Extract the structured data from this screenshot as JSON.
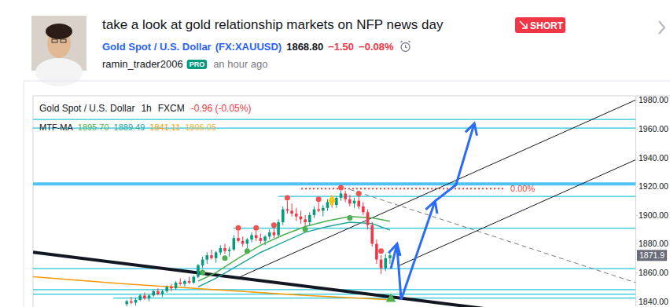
{
  "header": {
    "title": "take a look at gold relationship markets on NFP news day",
    "badge": "SHORT",
    "symbol": "Gold Spot / U.S. Dollar",
    "ticker": "(FX:XAUUSD)",
    "price": "1868.80",
    "change": "−1.50",
    "change_percent": "−0.08%",
    "author": "ramin_trader2006",
    "author_badge": "PRO",
    "time": "an hour ago"
  },
  "chart_data": {
    "type": "candlestick",
    "title": "Gold Spot / U.S. Dollar",
    "interval": "1h",
    "exchange": "FXCM",
    "change": "-0.96 (-0.05%)",
    "indicator": {
      "name": "MTF-MA",
      "labels": [
        "1895.70",
        "1889.49",
        "1841.11",
        "1806.05"
      ],
      "colors": [
        "#4caf50",
        "#26a69a",
        "#ff9800",
        "#f5b335"
      ]
    },
    "x": [
      0,
      1,
      2,
      3,
      4,
      5,
      6,
      7,
      8,
      9,
      10,
      11,
      12,
      13,
      14,
      15,
      16,
      17,
      18,
      19,
      20,
      21,
      22,
      23,
      24,
      25,
      26,
      27,
      28,
      29,
      30,
      31,
      32,
      33,
      34,
      35,
      36,
      37,
      38,
      39,
      40,
      41,
      42,
      43,
      44,
      45,
      46,
      47,
      48,
      49,
      50,
      51,
      52,
      53,
      54,
      55,
      56,
      57,
      58,
      59
    ],
    "open": [
      1838,
      1840,
      1839,
      1841,
      1844,
      1842,
      1844,
      1847,
      1845,
      1847,
      1850,
      1849,
      1853,
      1852,
      1854,
      1853,
      1857,
      1865,
      1869,
      1872,
      1870,
      1874,
      1877,
      1875,
      1876,
      1884,
      1882,
      1880,
      1883,
      1886,
      1884,
      1882,
      1885,
      1888,
      1886,
      1895,
      1904,
      1903,
      1901,
      1899,
      1897,
      1895,
      1900,
      1904,
      1903,
      1905,
      1909,
      1907,
      1912,
      1915,
      1911,
      1908,
      1910,
      1906,
      1902,
      1893,
      1880,
      1869,
      1863,
      1870
    ],
    "high": [
      1841,
      1843,
      1842,
      1845,
      1846,
      1845,
      1848,
      1849,
      1848,
      1851,
      1852,
      1854,
      1856,
      1855,
      1857,
      1858,
      1866,
      1871,
      1874,
      1876,
      1875,
      1879,
      1880,
      1878,
      1886,
      1889,
      1885,
      1884,
      1888,
      1889,
      1887,
      1886,
      1890,
      1891,
      1897,
      1906,
      1910,
      1908,
      1905,
      1903,
      1900,
      1902,
      1906,
      1909,
      1907,
      1911,
      1912,
      1913,
      1917,
      1917,
      1914,
      1912,
      1913,
      1909,
      1904,
      1895,
      1883,
      1872,
      1873,
      1874
    ],
    "low": [
      1836.5,
      1838,
      1837,
      1840,
      1841,
      1840,
      1843,
      1844,
      1843,
      1846,
      1847,
      1848,
      1851,
      1850,
      1852,
      1852,
      1856,
      1863,
      1866,
      1869,
      1867,
      1872,
      1873,
      1871,
      1875,
      1881,
      1878,
      1877,
      1881,
      1882,
      1880,
      1879,
      1883,
      1884,
      1885,
      1893,
      1901,
      1899,
      1896,
      1894,
      1892,
      1893,
      1898,
      1902,
      1899,
      1903,
      1905,
      1905,
      1910,
      1909,
      1906,
      1905,
      1904,
      1900,
      1890,
      1878,
      1866,
      1859,
      1861,
      1866
    ],
    "close": [
      1840,
      1839,
      1841,
      1844,
      1842,
      1844,
      1847,
      1845,
      1847,
      1850,
      1849,
      1853,
      1852,
      1854,
      1853,
      1857,
      1865,
      1869,
      1872,
      1870,
      1874,
      1877,
      1875,
      1876,
      1884,
      1882,
      1880,
      1883,
      1886,
      1884,
      1882,
      1885,
      1888,
      1886,
      1895,
      1904,
      1903,
      1901,
      1899,
      1897,
      1895,
      1900,
      1904,
      1903,
      1905,
      1909,
      1907,
      1912,
      1915,
      1911,
      1908,
      1910,
      1906,
      1902,
      1893,
      1880,
      1869,
      1863,
      1870,
      1872
    ],
    "xlim": [
      -21,
      114
    ],
    "ylim": [
      1836,
      1983
    ],
    "yticks": [
      {
        "value": 1840,
        "label": "1840.00"
      },
      {
        "value": 1860,
        "label": "1860.00"
      },
      {
        "value": 1880,
        "label": "1880.00"
      },
      {
        "value": 1900,
        "label": "1900.00"
      },
      {
        "value": 1920,
        "label": "1920.00"
      },
      {
        "value": 1940,
        "label": "1940.00"
      },
      {
        "value": 1960,
        "label": "1960.00"
      },
      {
        "value": 1980,
        "label": "1980.00"
      }
    ],
    "tick_labels": "y",
    "grid": false,
    "last_price": 1871.9,
    "series": [
      {
        "type": "line",
        "color": "#4caf50",
        "x": [
          16,
          20,
          25,
          30,
          35,
          40,
          45,
          50,
          55,
          59
        ],
        "values": [
          1854,
          1860,
          1870,
          1879,
          1886,
          1892,
          1896,
          1899,
          1898,
          1895.7
        ]
      },
      {
        "type": "line",
        "color": "#26a69a",
        "x": [
          16,
          20,
          25,
          30,
          35,
          40,
          45,
          50,
          55,
          59
        ],
        "values": [
          1850,
          1856,
          1865,
          1874,
          1881,
          1888,
          1892,
          1895,
          1894,
          1889.49
        ]
      },
      {
        "type": "line",
        "color": "#ff9800",
        "x": [
          -21,
          0,
          20,
          40,
          59
        ],
        "values": [
          1857,
          1852,
          1848,
          1844,
          1841.11
        ]
      },
      {
        "type": "scatter",
        "marker": "circle",
        "color": "#ef5350",
        "x": [
          25,
          29,
          33,
          36,
          43,
          48,
          52,
          57
        ],
        "values": [
          1891,
          1891,
          1893,
          1912,
          1911,
          1919,
          1915,
          1875
        ]
      },
      {
        "type": "scatter",
        "marker": "circle",
        "color": "#4caf50",
        "x": [
          17,
          22,
          27,
          40,
          50
        ],
        "values": [
          1860,
          1870,
          1875,
          1890,
          1898
        ]
      },
      {
        "type": "scatter",
        "marker": "diamond",
        "color": "#f5c518",
        "x": [
          46
        ],
        "values": [
          1910
        ]
      },
      {
        "type": "scatter",
        "marker": "triangle",
        "color": "#4caf50",
        "x": [
          59.2
        ],
        "values": [
          1841.5
        ]
      }
    ],
    "levels": [
      {
        "value": 1966.5,
        "x": [
          -21,
          114
        ],
        "color": "#26c6da",
        "line_style": "solid"
      },
      {
        "value": 1960.5,
        "x": [
          -21,
          114
        ],
        "color": "#26c6da",
        "line_style": "solid"
      },
      {
        "value": 1921.6,
        "x": [
          -21,
          114
        ],
        "color": "#4fc3f7",
        "line_style": "thick"
      },
      {
        "value": 1913,
        "x": [
          34,
          114
        ],
        "color": "#26c6da",
        "line_style": "solid"
      },
      {
        "value": 1890.8,
        "x": [
          23.9,
          114
        ],
        "color": "#26c6da",
        "line_style": "solid"
      },
      {
        "value": 1862.7,
        "x": [
          -21,
          114
        ],
        "color": "#26c6da",
        "line_style": "solid"
      },
      {
        "value": 1848.1,
        "x": [
          -21,
          114
        ],
        "color": "#26c6da",
        "line_style": "solid"
      },
      {
        "value": 1844.9,
        "x": [
          -21,
          114
        ],
        "color": "#26c6da",
        "line_style": "solid"
      },
      {
        "value": 1842.2,
        "x": [
          -3,
          114
        ],
        "color": "#26c6da",
        "line_style": "solid"
      }
    ],
    "trendlines": [
      {
        "x": [
          -21,
          80.9
        ],
        "values": [
          1874.1,
          1834.6
        ],
        "color": "#131722",
        "line_style": "thick"
      },
      {
        "x": [
          24.5,
          114
        ],
        "values": [
          1855.7,
          1980
        ],
        "color": "#131722",
        "line_style": "solid"
      },
      {
        "x": [
          61.1,
          114
        ],
        "values": [
          1864.9,
          1938.4
        ],
        "color": "#131722",
        "line_style": "solid"
      },
      {
        "x": [
          50,
          114
        ],
        "values": [
          1917.8,
          1853
        ],
        "color": "#787b86",
        "line_style": "dashed"
      }
    ],
    "fib": {
      "value": 1918.4,
      "x": [
        39.1,
        84.4
      ],
      "label": "0.00%",
      "color": "#f44336",
      "line_style": "dotted"
    },
    "arrows": [
      {
        "x": [
          59.2,
          60.6
        ],
        "values": [
          1862.7,
          1880
        ],
        "color": "#2a6cf5"
      },
      {
        "x": [
          60.6,
          61.5,
          69.1
        ],
        "values": [
          1877.3,
          1841.1,
          1909.7
        ],
        "color": "#2a6cf5"
      },
      {
        "x": [
          69.1,
          73.8,
          77.9
        ],
        "values": [
          1909.7,
          1921.1,
          1963.8
        ],
        "color": "#2a6cf5"
      }
    ]
  }
}
